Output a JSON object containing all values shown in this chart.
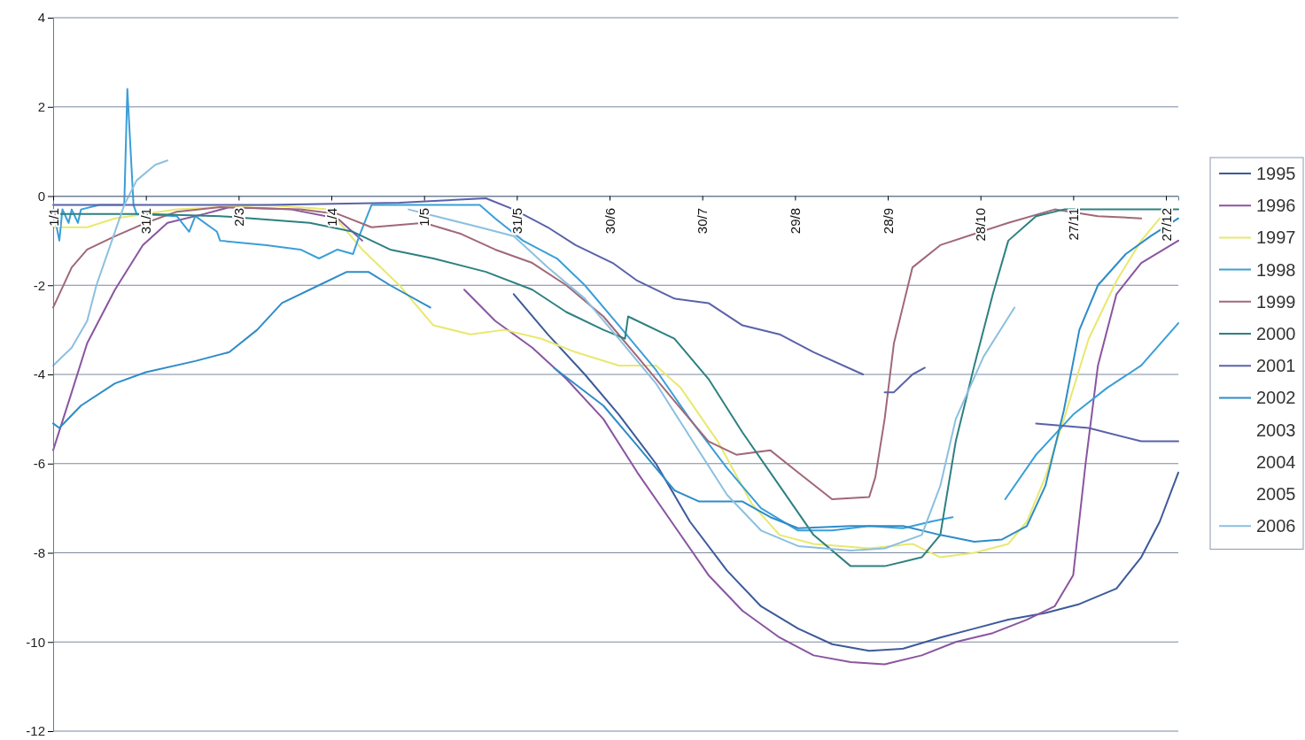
{
  "chart_data": {
    "type": "line",
    "xlim": [
      "--01-01",
      "--12-31"
    ],
    "ylim": [
      -12,
      4
    ],
    "yticks": [
      -12,
      -10,
      -8,
      -6,
      -4,
      -2,
      0,
      2,
      4
    ],
    "xticks": [
      {
        "value": "--01-01",
        "label": "1/1"
      },
      {
        "value": "--01-31",
        "label": "31/1"
      },
      {
        "value": "--03-02",
        "label": "2/3"
      },
      {
        "value": "--04-01",
        "label": "1/4"
      },
      {
        "value": "--05-01",
        "label": "1/5"
      },
      {
        "value": "--05-31",
        "label": "31/5"
      },
      {
        "value": "--06-30",
        "label": "30/6"
      },
      {
        "value": "--07-30",
        "label": "30/7"
      },
      {
        "value": "--08-29",
        "label": "29/8"
      },
      {
        "value": "--09-28",
        "label": "28/9"
      },
      {
        "value": "--10-28",
        "label": "28/10"
      },
      {
        "value": "--11-27",
        "label": "27/11"
      },
      {
        "value": "--12-27",
        "label": "27/12"
      }
    ],
    "grid": "y",
    "legend": "right",
    "series": [
      {
        "name": "1995",
        "color": "#3d5a9a",
        "x": [
          "--05-30",
          "--06-10",
          "--06-22",
          "--07-03",
          "--07-15",
          "--07-26",
          "--08-07",
          "--08-18",
          "--08-30",
          "--09-10",
          "--09-22",
          "--10-03",
          "--10-15",
          "--10-26",
          "--11-06",
          "--11-18",
          "--11-29",
          "--12-11",
          "--12-19",
          "--12-25",
          "--12-31"
        ],
        "values": [
          -2.2,
          -3.1,
          -4.0,
          -4.9,
          -6.0,
          -7.3,
          -8.4,
          -9.2,
          -9.7,
          -10.05,
          -10.2,
          -10.15,
          -9.9,
          -9.7,
          -9.5,
          -9.35,
          -9.15,
          -8.8,
          -8.1,
          -7.3,
          -6.2
        ]
      },
      {
        "name": "1996",
        "color": "#8a55a0",
        "x": [
          "--01-01",
          "--01-07",
          "--01-12",
          "--01-21",
          "--01-30",
          "--02-07",
          "--02-19",
          "--02-27",
          "--03-19",
          "--04-03",
          "--04-11",
          "--04-26",
          "--05-14",
          "--05-24",
          "--06-05",
          "--06-16",
          "--06-28",
          "--07-09",
          "--07-21",
          "--08-01",
          "--08-12",
          "--08-24",
          "--09-04",
          "--09-16",
          "--09-27",
          "--10-09",
          "--10-20",
          "--11-01",
          "--11-12",
          "--11-21",
          "--11-27",
          "--12-01",
          "--12-05",
          "--12-11",
          "--12-19",
          "--12-31"
        ],
        "values": [
          -5.7,
          -4.4,
          -3.3,
          -2.1,
          -1.1,
          -0.6,
          -0.4,
          -0.25,
          -0.3,
          -0.5,
          -1.0,
          null,
          -2.1,
          -2.8,
          -3.4,
          -4.1,
          -5.0,
          -6.2,
          -7.4,
          -8.5,
          -9.3,
          -9.9,
          -10.3,
          -10.45,
          -10.5,
          -10.3,
          -10.0,
          -9.8,
          -9.5,
          -9.2,
          -8.5,
          -6.0,
          -3.8,
          -2.2,
          -1.5,
          -1.0
        ]
      },
      {
        "name": "1997",
        "color": "#e8e870",
        "x": [
          "--01-01",
          "--01-12",
          "--01-21",
          "--02-10",
          "--03-11",
          "--03-31",
          "--04-11",
          "--04-23",
          "--05-04",
          "--05-16",
          "--05-27",
          "--06-08",
          "--06-19",
          "--07-03",
          "--07-15",
          "--07-23",
          "--08-04",
          "--08-15",
          "--08-24",
          "--09-04",
          "--09-22",
          "--10-06",
          "--10-15",
          "--10-26",
          "--11-06",
          "--11-12",
          "--11-18",
          "--11-24",
          "--12-02",
          "--12-11",
          "--12-19",
          "--12-25"
        ],
        "values": [
          -0.7,
          -0.7,
          -0.5,
          -0.3,
          -0.2,
          -0.3,
          -1.2,
          -2.0,
          -2.9,
          -3.1,
          -3.0,
          -3.2,
          -3.5,
          -3.8,
          -3.8,
          -4.3,
          -5.5,
          -6.9,
          -7.6,
          -7.8,
          -7.9,
          -7.8,
          -8.1,
          -8.0,
          -7.8,
          -7.3,
          -6.3,
          -5.0,
          -3.2,
          -1.9,
          -1.0,
          -0.5
        ]
      },
      {
        "name": "1998",
        "color": "#3a9fd8",
        "x": [
          "--01-01",
          "--01-03",
          "--01-04",
          "--01-06",
          "--01-07",
          "--01-09",
          "--01-10",
          "--01-16",
          "--01-24",
          "--01-25",
          "--01-27",
          "--01-28",
          "--02-10",
          "--02-14",
          "--02-16",
          "--02-23",
          "--02-24",
          "--03-11",
          "--03-22",
          "--03-28",
          "--04-03",
          "--04-08",
          "--04-10",
          "--04-14",
          "--05-19",
          "--05-24",
          "--06-02",
          "--06-13",
          "--06-22",
          "--07-03",
          "--07-15",
          "--07-26",
          "--08-07",
          "--08-18",
          "--08-30",
          "--09-10",
          "--09-22",
          "--10-03",
          "--10-12",
          "--10-19",
          "--10-28",
          "--11-05",
          "--11-15",
          "--11-27",
          "--12-08",
          "--12-19",
          "--12-31"
        ],
        "values": [
          -0.3,
          -1.0,
          -0.3,
          -0.6,
          -0.3,
          -0.6,
          -0.3,
          -0.2,
          -0.2,
          2.4,
          -0.2,
          -0.4,
          -0.45,
          -0.8,
          -0.45,
          -0.8,
          -1.0,
          -1.1,
          -1.2,
          -1.4,
          -1.2,
          -1.3,
          -0.9,
          -0.2,
          -0.2,
          -0.5,
          -1.0,
          -1.4,
          -2.0,
          -2.9,
          -3.9,
          -5.0,
          -6.1,
          -7.0,
          -7.5,
          -7.5,
          -7.4,
          -7.45,
          -7.3,
          -7.2,
          null,
          -6.8,
          -5.8,
          -4.9,
          -4.3,
          -3.8,
          -2.85
        ]
      },
      {
        "name": "1999",
        "color": "#a06878",
        "x": [
          "--01-01",
          "--01-07",
          "--01-12",
          "--01-21",
          "--01-31",
          "--02-10",
          "--02-24",
          "--03-22",
          "--04-03",
          "--04-14",
          "--05-01",
          "--05-13",
          "--05-24",
          "--06-05",
          "--06-16",
          "--06-28",
          "--07-09",
          "--07-21",
          "--08-01",
          "--08-10",
          "--08-21",
          "--08-30",
          "--09-10",
          "--09-22",
          "--09-24",
          "--09-27",
          "--09-30",
          "--10-06",
          "--10-15",
          "--10-26",
          "--11-06",
          "--11-21",
          "--12-05",
          "--12-19"
        ],
        "values": [
          -2.5,
          -1.6,
          -1.2,
          -0.9,
          -0.6,
          -0.35,
          -0.25,
          -0.3,
          -0.4,
          -0.7,
          -0.6,
          -0.85,
          -1.2,
          -1.5,
          -2.0,
          -2.7,
          -3.6,
          -4.6,
          -5.5,
          -5.8,
          -5.7,
          -6.2,
          -6.8,
          -6.75,
          -6.3,
          -5.0,
          -3.3,
          -1.6,
          -1.1,
          -0.85,
          -0.6,
          -0.3,
          -0.45,
          -0.5
        ]
      },
      {
        "name": "2000",
        "color": "#2e8080",
        "x": [
          "--01-01",
          "--01-31",
          "--02-24",
          "--03-25",
          "--04-08",
          "--04-20",
          "--05-04",
          "--05-21",
          "--06-05",
          "--06-16",
          "--06-28",
          "--07-05",
          "--07-06",
          "--07-21",
          "--08-01",
          "--08-12",
          "--08-24",
          "--09-04",
          "--09-16",
          "--09-27",
          "--10-09",
          "--10-15",
          "--10-20",
          "--10-26",
          "--11-01",
          "--11-06",
          "--11-15",
          "--11-24",
          "--12-31"
        ],
        "values": [
          -0.4,
          -0.4,
          -0.45,
          -0.6,
          -0.8,
          -1.2,
          -1.4,
          -1.7,
          -2.1,
          -2.6,
          -3.0,
          -3.2,
          -2.7,
          -3.2,
          -4.1,
          -5.3,
          -6.5,
          -7.6,
          -8.3,
          -8.3,
          -8.1,
          -7.6,
          -5.5,
          -3.8,
          -2.2,
          -1.0,
          -0.45,
          -0.3,
          -0.3
        ]
      },
      {
        "name": "2001",
        "color": "#5a62a8",
        "x": [
          "--01-01",
          "--03-11",
          "--04-23",
          "--05-21",
          "--05-30",
          "--06-10",
          "--06-19",
          "--07-01",
          "--07-09",
          "--07-21",
          "--08-01",
          "--08-12",
          "--08-24",
          "--09-04",
          "--09-20",
          "--09-24",
          "--09-27",
          "--09-30",
          "--10-06",
          "--10-10",
          "--10-28",
          "--11-15",
          "--12-02",
          "--12-19",
          "--12-31"
        ],
        "values": [
          -0.2,
          -0.2,
          -0.15,
          -0.05,
          -0.3,
          -0.7,
          -1.1,
          -1.5,
          -1.9,
          -2.3,
          -2.4,
          -2.9,
          -3.1,
          -3.5,
          -4.0,
          null,
          -4.4,
          -4.4,
          -4.0,
          -3.85,
          null,
          -5.1,
          -5.2,
          -5.5,
          -5.5
        ]
      },
      {
        "name": "2002",
        "color": "#2e8cc8",
        "x": [
          "--01-01",
          "--01-03",
          "--01-10",
          "--01-21",
          "--01-31",
          "--02-16",
          "--02-27",
          "--03-08",
          "--03-16",
          "--03-28",
          "--04-06",
          "--04-13",
          "--04-20",
          "--05-03",
          "--05-21",
          "--06-12",
          "--06-28",
          "--07-09",
          "--07-21",
          "--07-29",
          "--08-12",
          "--08-21",
          "--08-30",
          "--09-16",
          "--10-03",
          "--10-15",
          "--10-26",
          "--11-04",
          "--11-12",
          "--11-18",
          "--11-24",
          "--11-29",
          "--12-05",
          "--12-14",
          "--12-22",
          "--12-31"
        ],
        "values": [
          -5.1,
          -5.2,
          -4.7,
          -4.2,
          -3.95,
          -3.7,
          -3.5,
          -3.0,
          -2.4,
          -2.0,
          -1.7,
          -1.7,
          -2.0,
          -2.5,
          null,
          -3.85,
          -4.7,
          -5.6,
          -6.6,
          -6.85,
          -6.85,
          -7.2,
          -7.45,
          -7.4,
          -7.4,
          -7.6,
          -7.75,
          -7.7,
          -7.4,
          -6.5,
          -4.8,
          -3.0,
          -2.0,
          -1.3,
          -0.9,
          -0.5
        ]
      },
      {
        "name": "2003"
      },
      {
        "name": "2004"
      },
      {
        "name": "2005"
      },
      {
        "name": "2006",
        "color": "#8cc0e0",
        "x": [
          "--01-01",
          "--01-07",
          "--01-12",
          "--01-15",
          "--01-20",
          "--01-24",
          "--01-28",
          "--02-03",
          "--02-07",
          "--03-02",
          "--04-26",
          "--05-19",
          "--05-30",
          "--06-10",
          "--06-22",
          "--07-03",
          "--07-15",
          "--07-26",
          "--08-07",
          "--08-18",
          "--08-30",
          "--09-16",
          "--09-27",
          "--10-09",
          "--10-15",
          "--10-20",
          "--10-29",
          "--11-08"
        ],
        "values": [
          -3.8,
          -3.4,
          -2.8,
          -2.0,
          -1.0,
          -0.2,
          0.35,
          0.7,
          0.8,
          null,
          -0.3,
          -0.7,
          -0.9,
          -1.6,
          -2.3,
          -3.2,
          -4.2,
          -5.4,
          -6.7,
          -7.5,
          -7.85,
          -7.95,
          -7.9,
          -7.6,
          -6.5,
          -5.0,
          -3.6,
          -2.5
        ]
      }
    ]
  }
}
